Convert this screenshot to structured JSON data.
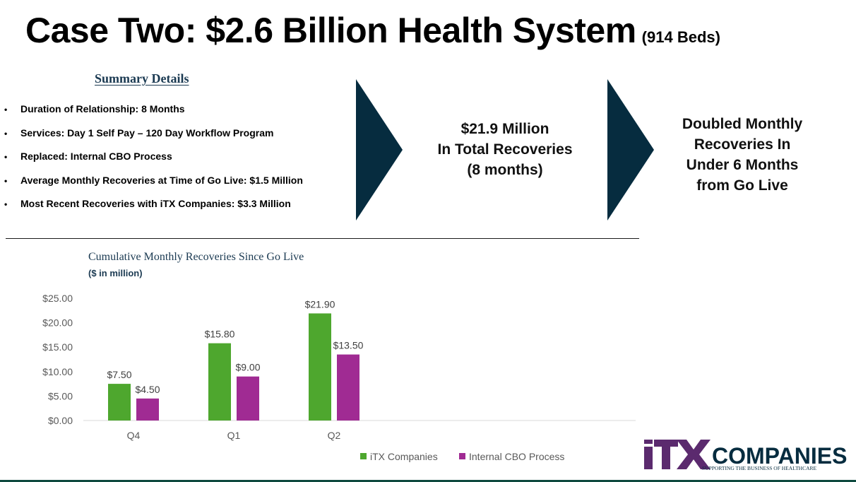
{
  "slide": {
    "title": "Case Two: $2.6 Billion Health System",
    "title_note": "(914 Beds)"
  },
  "summary": {
    "heading": "Summary Details",
    "items": [
      "Duration of Relationship: 8 Months",
      "Services: Day 1 Self Pay – 120 Day Workflow Program",
      "Replaced: Internal CBO Process",
      "Average Monthly Recoveries at Time of Go Live: $1.5 Million",
      "Most Recent Recoveries with iTX Companies:  $3.3 Million"
    ]
  },
  "callout_1": {
    "lines": [
      "$21.9 Million",
      "In Total Recoveries",
      "(8 months)"
    ]
  },
  "callout_2": {
    "lines": [
      "Doubled Monthly",
      "Recoveries In",
      "Under 6 Months",
      "from Go Live"
    ]
  },
  "colors": {
    "arrow": "#062c3f",
    "itx_green": "#4ea72e",
    "cbo_purple": "#a02b93",
    "navy": "#1b3a52"
  },
  "chart_data": {
    "type": "bar",
    "title": "Cumulative Monthly Recoveries Since Go Live",
    "subtitle": "($ in million)",
    "categories": [
      "Q4",
      "Q1",
      "Q2"
    ],
    "series": [
      {
        "name": "iTX Companies",
        "values": [
          7.5,
          15.8,
          21.9
        ],
        "labels": [
          "$7.50",
          "$15.80",
          "$21.90"
        ]
      },
      {
        "name": "Internal CBO Process",
        "values": [
          4.5,
          9.0,
          13.5
        ],
        "labels": [
          "$4.50",
          "$9.00",
          "$13.50"
        ]
      }
    ],
    "yticks": [
      "$0.00",
      "$5.00",
      "$10.00",
      "$15.00",
      "$20.00",
      "$25.00"
    ],
    "ylim": [
      0,
      25
    ],
    "grid": false,
    "legend": "bottom"
  },
  "logo": {
    "name": "iTX COMPANIES",
    "tagline": "SUPPORTING THE BUSINESS OF HEALTHCARE"
  }
}
